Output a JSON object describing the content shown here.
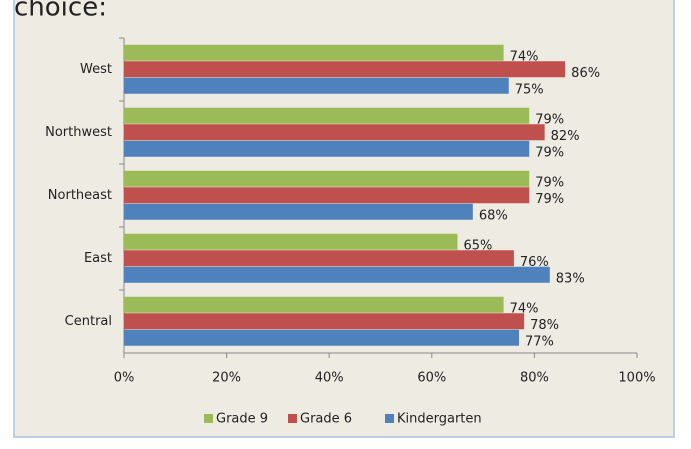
{
  "chart_data": {
    "type": "bar",
    "orientation": "horizontal",
    "title": "choice:",
    "categories": [
      "West",
      "Northwest",
      "Northeast",
      "East",
      "Central"
    ],
    "series": [
      {
        "name": "Grade 9",
        "color": "#9bbb59",
        "values": [
          74,
          79,
          79,
          65,
          74
        ],
        "value_labels": [
          "74%",
          "79%",
          "79%",
          "65%",
          "74%"
        ]
      },
      {
        "name": "Grade 6",
        "color": "#c0504d",
        "values": [
          86,
          82,
          79,
          76,
          78
        ],
        "value_labels": [
          "86%",
          "82%",
          "79%",
          "76%",
          "78%"
        ]
      },
      {
        "name": "Kindergarten",
        "color": "#4f81bd",
        "values": [
          75,
          79,
          68,
          83,
          77
        ],
        "value_labels": [
          "75%",
          "79%",
          "68%",
          "83%",
          "77%"
        ]
      }
    ],
    "xlim": [
      0,
      100
    ],
    "xticks": [
      {
        "value": 0,
        "label": "0%"
      },
      {
        "value": 20,
        "label": "20%"
      },
      {
        "value": 40,
        "label": "40%"
      },
      {
        "value": 60,
        "label": "60%"
      },
      {
        "value": 80,
        "label": "80%"
      },
      {
        "value": 100,
        "label": "100%"
      }
    ],
    "grid": false,
    "legend": "bottom"
  }
}
